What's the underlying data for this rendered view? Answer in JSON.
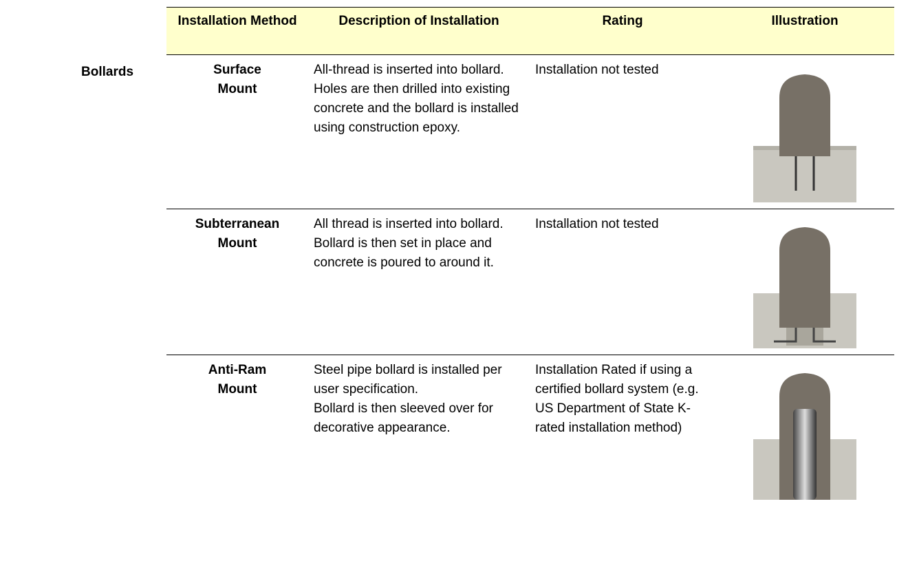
{
  "group_label": "Bollards",
  "table": {
    "headers": [
      "Installation Method",
      "Description of Installation",
      "Rating",
      "Illustration"
    ],
    "rows": [
      {
        "method": [
          "Surface",
          "Mount"
        ],
        "description": [
          "All-thread is inserted into bollard. Holes are then drilled into existing concrete and the bollard is installed using construction epoxy."
        ],
        "rating": "Installation not tested"
      },
      {
        "method": [
          "Subterranean",
          "Mount"
        ],
        "description": [
          "All thread is inserted into bollard.  Bollard is then set in place and concrete is poured to around it."
        ],
        "rating": "Installation not tested"
      },
      {
        "method": [
          "Anti-Ram",
          "Mount"
        ],
        "description": [
          "Steel pipe bollard is installed per user specification.",
          "Bollard is then sleeved over for decorative appearance."
        ],
        "rating": "Installation Rated if using a certified bollard system (e.g. US Department of State K-rated installation method)"
      }
    ]
  }
}
